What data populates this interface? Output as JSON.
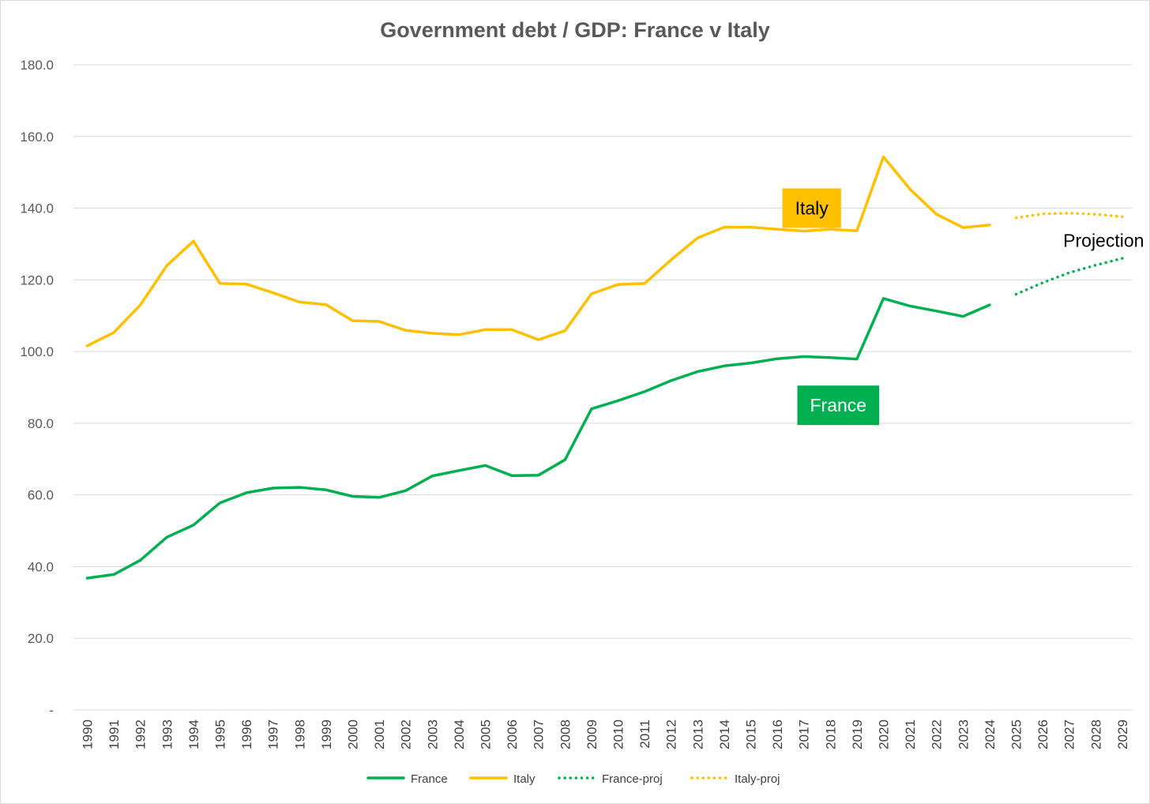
{
  "chart_data": {
    "type": "line",
    "title": "Government debt / GDP: France v Italy",
    "xlabel": "",
    "ylabel": "",
    "ylim": [
      0,
      180
    ],
    "y_ticks": [
      0,
      20,
      40,
      60,
      80,
      100,
      120,
      140,
      160,
      180
    ],
    "y_tick_labels": [
      "-",
      "20.0",
      "40.0",
      "60.0",
      "80.0",
      "100.0",
      "120.0",
      "140.0",
      "160.0",
      "180.0"
    ],
    "grid": true,
    "legend_position": "bottom",
    "categories": [
      "1990",
      "1991",
      "1992",
      "1993",
      "1994",
      "1995",
      "1996",
      "1997",
      "1998",
      "1999",
      "2000",
      "2001",
      "2002",
      "2003",
      "2004",
      "2005",
      "2006",
      "2007",
      "2008",
      "2009",
      "2010",
      "2011",
      "2012",
      "2013",
      "2014",
      "2015",
      "2016",
      "2017",
      "2018",
      "2019",
      "2020",
      "2021",
      "2022",
      "2023",
      "2024",
      "2025",
      "2026",
      "2027",
      "2028",
      "2029"
    ],
    "series": [
      {
        "name": "France",
        "color": "#00b050",
        "dash": "solid",
        "values": [
          36.8,
          37.8,
          41.8,
          48.2,
          51.6,
          57.8,
          60.6,
          61.9,
          62.1,
          61.4,
          59.6,
          59.3,
          61.2,
          65.3,
          66.8,
          68.2,
          65.4,
          65.5,
          69.8,
          84.0,
          86.3,
          88.8,
          91.9,
          94.4,
          96.0,
          96.8,
          98.0,
          98.6,
          98.3,
          97.9,
          114.8,
          112.7,
          111.3,
          109.8,
          113.0,
          null,
          null,
          null,
          null,
          null
        ]
      },
      {
        "name": "Italy",
        "color": "#ffc000",
        "dash": "solid",
        "values": [
          101.6,
          105.3,
          113.0,
          124.0,
          130.8,
          119.0,
          118.8,
          116.4,
          113.8,
          113.1,
          108.6,
          108.4,
          105.9,
          105.1,
          104.7,
          106.1,
          106.1,
          103.3,
          105.8,
          116.1,
          118.7,
          119.0,
          125.6,
          131.7,
          134.7,
          134.7,
          134.1,
          133.6,
          134.1,
          133.7,
          154.3,
          145.3,
          138.3,
          134.6,
          135.3,
          null,
          null,
          null,
          null,
          null
        ]
      },
      {
        "name": "France-proj",
        "color": "#00b050",
        "dash": "dotted",
        "values": [
          null,
          null,
          null,
          null,
          null,
          null,
          null,
          null,
          null,
          null,
          null,
          null,
          null,
          null,
          null,
          null,
          null,
          null,
          null,
          null,
          null,
          null,
          null,
          null,
          null,
          null,
          null,
          null,
          null,
          null,
          null,
          null,
          null,
          null,
          null,
          116.0,
          119.2,
          122.0,
          124.1,
          126.0
        ]
      },
      {
        "name": "Italy-proj",
        "color": "#ffc000",
        "dash": "dotted",
        "values": [
          null,
          null,
          null,
          null,
          null,
          null,
          null,
          null,
          null,
          null,
          null,
          null,
          null,
          null,
          null,
          null,
          null,
          null,
          null,
          null,
          null,
          null,
          null,
          null,
          null,
          null,
          null,
          null,
          null,
          null,
          null,
          null,
          null,
          null,
          null,
          137.3,
          138.4,
          138.6,
          138.3,
          137.6
        ]
      }
    ],
    "annotations": [
      {
        "text": "Italy",
        "box_color": "#ffc000",
        "text_color": "#000000",
        "anchor_category": "2017",
        "anchor_value": 140
      },
      {
        "text": "France",
        "box_color": "#00b050",
        "text_color": "#ffffff",
        "anchor_category": "2018",
        "anchor_value": 85
      },
      {
        "text": "Projection",
        "box_color": "#ffffff",
        "text_color": "#000000",
        "anchor_category": "2028",
        "anchor_value": 131
      }
    ]
  }
}
